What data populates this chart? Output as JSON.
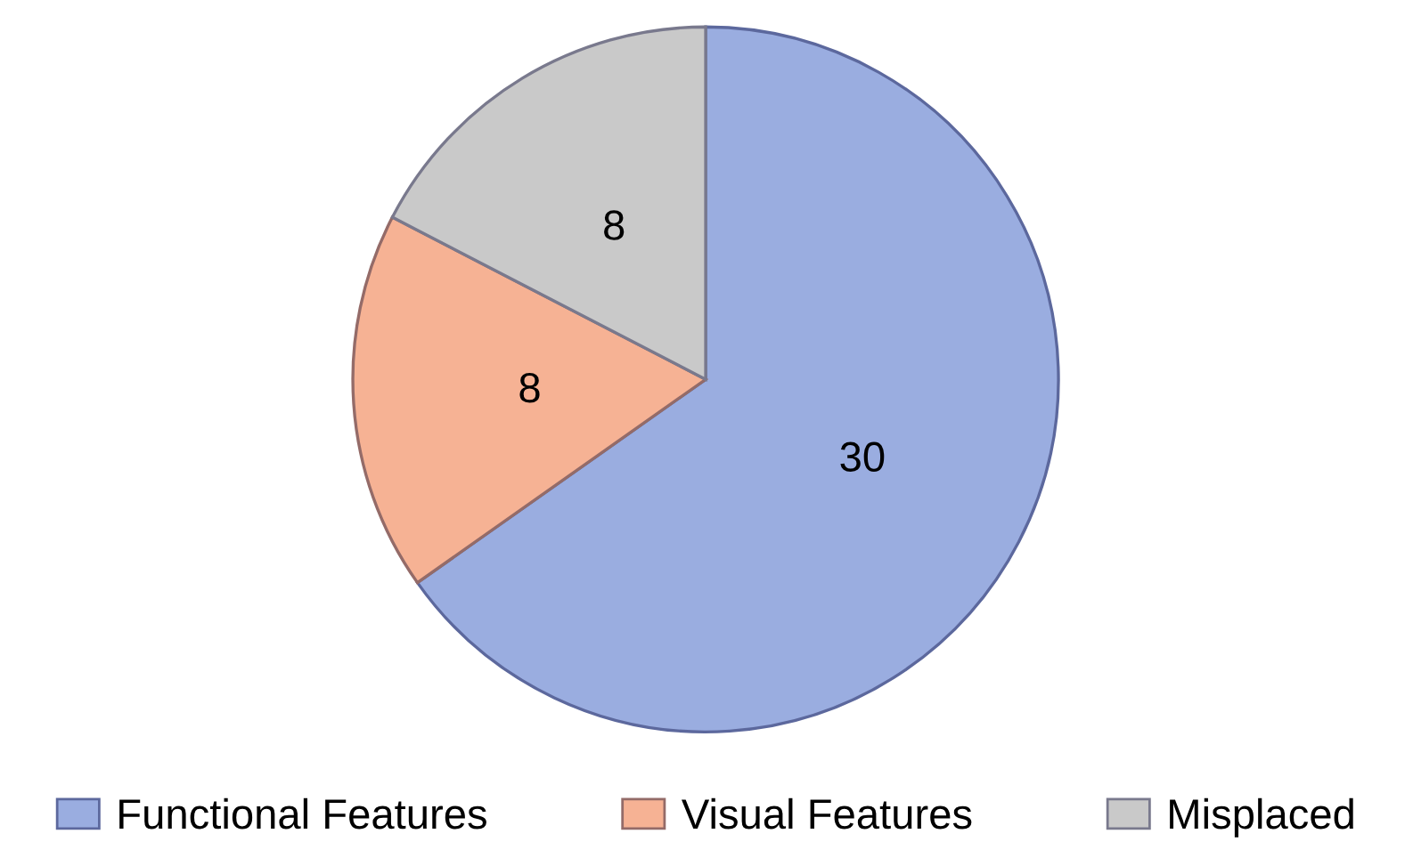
{
  "chart_data": {
    "type": "pie",
    "categories": [
      "Functional Features",
      "Visual Features",
      "Misplaced"
    ],
    "values": [
      30,
      8,
      8
    ],
    "colors": [
      "#9aade0",
      "#f6b294",
      "#c9c9c9"
    ],
    "data_labels": true,
    "legend": "bottom"
  }
}
